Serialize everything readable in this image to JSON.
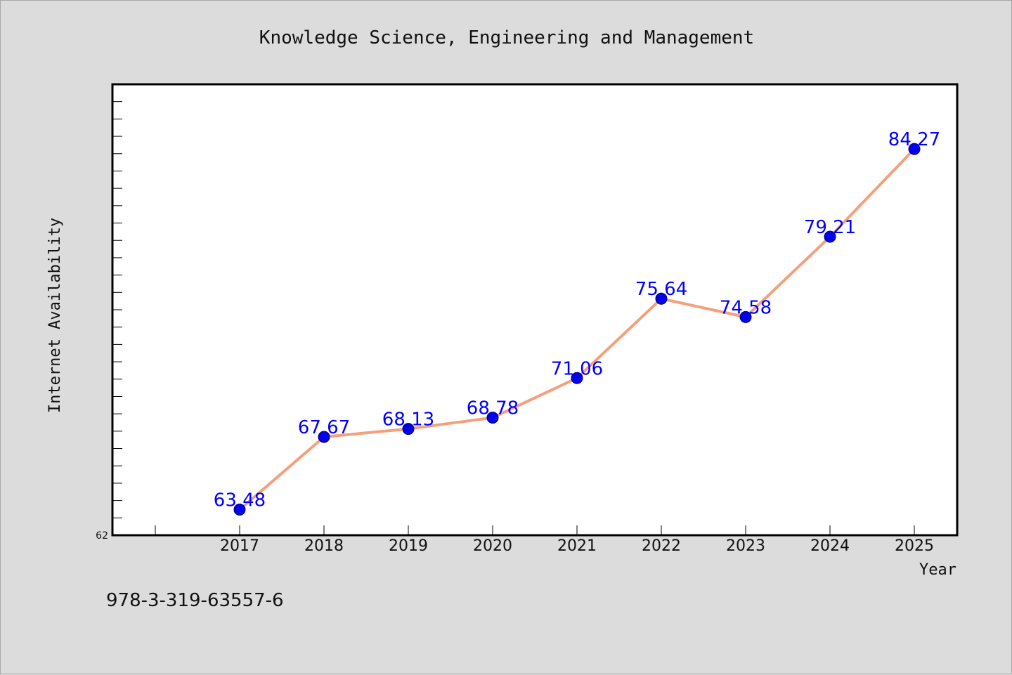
{
  "chart_data": {
    "type": "line",
    "title": "Knowledge Science, Engineering and Management",
    "xlabel": "Year",
    "ylabel": "Internet Availability",
    "categories": [
      "2017",
      "2018",
      "2019",
      "2020",
      "2021",
      "2022",
      "2023",
      "2024",
      "2025"
    ],
    "series": [
      {
        "values": [
          63.48,
          67.67,
          68.13,
          68.78,
          71.06,
          75.64,
          74.58,
          79.21,
          84.27
        ]
      }
    ],
    "data_labels": [
      "63.48",
      "67.67",
      "68.13",
      "68.78",
      "71.06",
      "75.64",
      "74.58",
      "79.21",
      "84.27"
    ],
    "ylim": [
      62,
      88
    ],
    "y_tick_labels": [
      "62"
    ],
    "grid": false,
    "line_color": "#f4a07c",
    "marker_color": "#0000ee",
    "label_color": "#0000ff"
  },
  "footer": {
    "isbn": "978-3-319-63557-6"
  }
}
